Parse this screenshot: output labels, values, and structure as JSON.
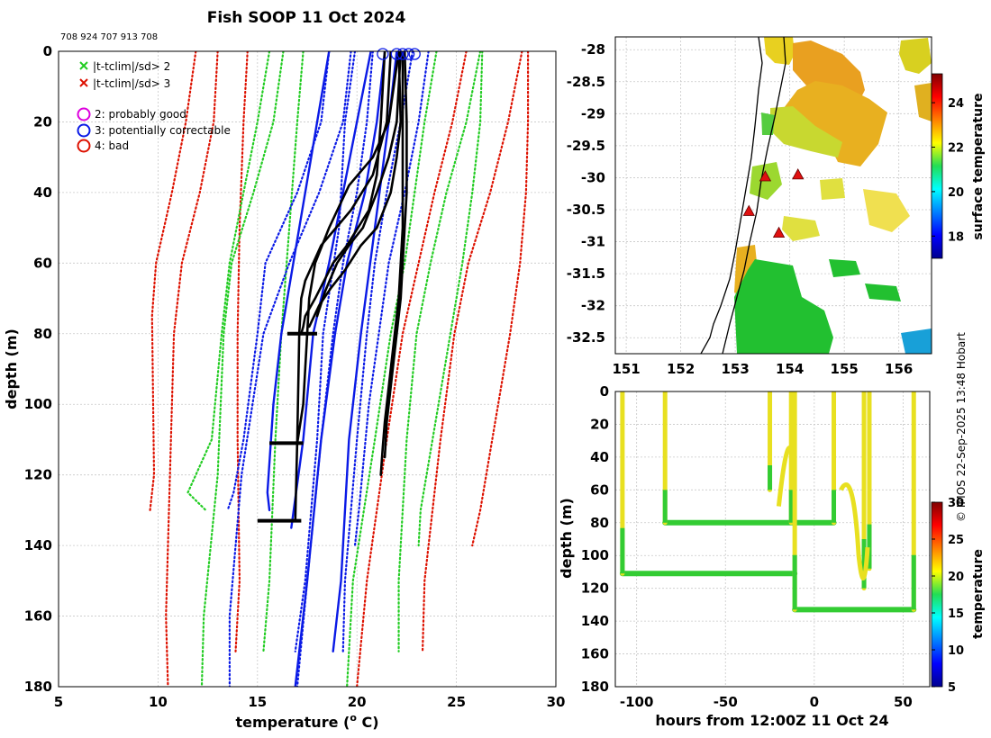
{
  "title": "Fish SOOP 11 Oct 2024",
  "platform_ids": "708 924 707 913 708",
  "credit": "© IMOS 22-Sep-2025 13:48 Hobart",
  "legend": {
    "flag2": "|t-tclim|/sd> 2",
    "flag3": "|t-tclim|/sd> 3",
    "q2": "2: probably good",
    "q3": "3: potentially correctable",
    "q4": "4: bad"
  },
  "colors": {
    "green": "#22cc22",
    "red": "#dd1100",
    "blue": "#0a1ae6",
    "magenta": "#dd00dd",
    "black": "#000000",
    "grid": "#c8c8c8"
  },
  "chart_data": [
    {
      "type": "line",
      "id": "profile",
      "xlabel": "temperature (",
      "xlabel_sup": "o",
      "xlabel_tail": " C)",
      "ylabel": "depth (m)",
      "xlim": [
        5,
        30
      ],
      "ylim": [
        0,
        180
      ],
      "xticks": [
        5,
        10,
        15,
        20,
        25,
        30
      ],
      "yticks": [
        0,
        20,
        40,
        60,
        80,
        100,
        120,
        140,
        160,
        180
      ],
      "grid": true,
      "series": [
        {
          "name": "clim-3sd-a",
          "color": "red",
          "style": "dotted",
          "x": [
            13.0,
            12.8,
            12.1,
            11.2,
            10.8,
            10.6,
            10.4,
            10.5
          ],
          "y": [
            0,
            20,
            40,
            60,
            80,
            120,
            160,
            180
          ]
        },
        {
          "name": "clim-3sd-b",
          "color": "red",
          "style": "dotted",
          "x": [
            11.9,
            11.4,
            10.7,
            9.9,
            9.7,
            9.8,
            9.6
          ],
          "y": [
            0,
            20,
            40,
            60,
            75,
            120,
            130
          ]
        },
        {
          "name": "clim-3sd-c",
          "color": "red",
          "style": "dotted",
          "x": [
            14.5,
            14.3,
            14.1,
            14.0,
            14.0,
            14.1,
            13.9
          ],
          "y": [
            0,
            20,
            50,
            80,
            110,
            150,
            170
          ]
        },
        {
          "name": "clim-3sd-d",
          "color": "red",
          "style": "dotted",
          "x": [
            25.5,
            24.8,
            23.9,
            23.1,
            22.3,
            21.5,
            20.5,
            20.0
          ],
          "y": [
            0,
            20,
            40,
            60,
            80,
            110,
            150,
            180
          ]
        },
        {
          "name": "clim-3sd-e",
          "color": "red",
          "style": "dotted",
          "x": [
            28.3,
            27.6,
            26.7,
            25.6,
            24.9,
            24.2,
            23.4,
            23.3
          ],
          "y": [
            0,
            20,
            40,
            60,
            80,
            110,
            150,
            170
          ]
        },
        {
          "name": "clim-3sd-f",
          "color": "red",
          "style": "dotted",
          "x": [
            28.6,
            28.6,
            28.5,
            28.2,
            27.7,
            27.1,
            26.2,
            25.8
          ],
          "y": [
            0,
            20,
            40,
            60,
            80,
            100,
            130,
            140
          ]
        },
        {
          "name": "clim-2sd-a",
          "color": "green",
          "style": "dotted",
          "x": [
            16.3,
            15.8,
            14.8,
            13.7,
            13.3,
            13.0,
            12.3,
            12.2
          ],
          "y": [
            0,
            20,
            40,
            60,
            80,
            120,
            160,
            180
          ]
        },
        {
          "name": "clim-2sd-b",
          "color": "green",
          "style": "dotted",
          "x": [
            15.6,
            15.0,
            14.3,
            13.6,
            13.2,
            12.7,
            11.5,
            12.4
          ],
          "y": [
            0,
            20,
            40,
            60,
            80,
            110,
            125,
            130
          ]
        },
        {
          "name": "clim-2sd-c",
          "color": "green",
          "style": "dotted",
          "x": [
            17.3,
            17.0,
            16.6,
            16.2,
            15.9,
            15.6,
            15.3
          ],
          "y": [
            0,
            20,
            50,
            80,
            110,
            150,
            170
          ]
        },
        {
          "name": "clim-2sd-d",
          "color": "green",
          "style": "dotted",
          "x": [
            24.0,
            23.4,
            22.9,
            22.4,
            21.7,
            20.9,
            19.8,
            19.5
          ],
          "y": [
            0,
            20,
            40,
            60,
            80,
            110,
            150,
            180
          ]
        },
        {
          "name": "clim-2sd-e",
          "color": "green",
          "style": "dotted",
          "x": [
            26.2,
            25.5,
            24.5,
            23.7,
            23.0,
            22.5,
            22.1,
            22.1
          ],
          "y": [
            0,
            20,
            40,
            60,
            80,
            110,
            150,
            170
          ]
        },
        {
          "name": "clim-2sd-f",
          "color": "green",
          "style": "dotted",
          "x": [
            26.3,
            26.2,
            25.8,
            25.3,
            24.7,
            24.1,
            23.2,
            23.1
          ],
          "y": [
            0,
            20,
            40,
            60,
            80,
            100,
            130,
            140
          ]
        },
        {
          "name": "clim-1sd-a",
          "color": "blue",
          "style": "dotted",
          "x": [
            19.7,
            19.3,
            18.1,
            16.6,
            15.3,
            14.2,
            13.6,
            13.6
          ],
          "y": [
            0,
            20,
            40,
            60,
            80,
            120,
            160,
            180
          ]
        },
        {
          "name": "clim-1sd-b",
          "color": "blue",
          "style": "dotted",
          "x": [
            18.6,
            18.2,
            17.0,
            15.4,
            15.0,
            14.3,
            13.8,
            13.5
          ],
          "y": [
            0,
            20,
            40,
            60,
            80,
            110,
            125,
            130
          ]
        },
        {
          "name": "clim-1sd-c",
          "color": "blue",
          "style": "dotted",
          "x": [
            19.9,
            19.4,
            19.1,
            18.3,
            18.0,
            17.4,
            16.9
          ],
          "y": [
            0,
            20,
            50,
            80,
            110,
            150,
            170
          ]
        },
        {
          "name": "clim-1sd-d",
          "color": "blue",
          "style": "dotted",
          "x": [
            20.8,
            20.5,
            20.0,
            19.3,
            18.8,
            18.2,
            17.5,
            17.0
          ],
          "y": [
            0,
            20,
            40,
            60,
            80,
            110,
            150,
            180
          ]
        },
        {
          "name": "clim-1sd-e",
          "color": "blue",
          "style": "dotted",
          "x": [
            22.8,
            22.2,
            21.5,
            20.9,
            20.5,
            20.0,
            19.4,
            19.3
          ],
          "y": [
            0,
            20,
            40,
            60,
            80,
            110,
            150,
            170
          ]
        },
        {
          "name": "clim-1sd-f",
          "color": "blue",
          "style": "dotted",
          "x": [
            23.6,
            23.1,
            22.4,
            21.6,
            21.1,
            20.6,
            20.1,
            19.9
          ],
          "y": [
            0,
            20,
            40,
            60,
            80,
            100,
            130,
            140
          ]
        },
        {
          "name": "clim-mean-a",
          "color": "blue",
          "style": "solid",
          "x": [
            21.4,
            21.0,
            20.4,
            19.5,
            18.9,
            18.2,
            17.5,
            16.9
          ],
          "y": [
            0,
            20,
            40,
            60,
            80,
            110,
            150,
            180
          ]
        },
        {
          "name": "clim-mean-b",
          "color": "blue",
          "style": "solid",
          "x": [
            22.0,
            21.6,
            20.9,
            20.2,
            19.6,
            19.2,
            18.8
          ],
          "y": [
            0,
            20,
            50,
            80,
            110,
            150,
            170
          ]
        },
        {
          "name": "clim-mean-c",
          "color": "blue",
          "style": "solid",
          "x": [
            20.7,
            20.0,
            19.3,
            18.6,
            17.8,
            17.3,
            16.7
          ],
          "y": [
            0,
            20,
            40,
            60,
            80,
            110,
            135
          ]
        },
        {
          "name": "clim-mean-d",
          "color": "blue",
          "style": "solid",
          "x": [
            18.6,
            18.0,
            17.4,
            16.8,
            16.2,
            15.8,
            15.5,
            15.6
          ],
          "y": [
            0,
            20,
            40,
            60,
            80,
            100,
            125,
            130
          ]
        },
        {
          "name": "obs-80m",
          "color": "black",
          "style": "solid",
          "x": [
            21.4,
            21.2,
            21.0,
            20.6,
            19.5,
            18.8,
            17.9,
            17.4,
            17.3,
            17.2
          ],
          "y": [
            0,
            20,
            35,
            45,
            55,
            60,
            70,
            75,
            78,
            80
          ]
        },
        {
          "name": "obs-111m",
          "color": "black",
          "style": "solid",
          "x": [
            22.1,
            21.6,
            20.8,
            19.6,
            18.6,
            17.9,
            17.6,
            17.5,
            17.3,
            17.0
          ],
          "y": [
            0,
            20,
            30,
            38,
            50,
            60,
            70,
            80,
            100,
            111
          ]
        },
        {
          "name": "obs-133m",
          "color": "black",
          "style": "solid",
          "x": [
            21.7,
            21.5,
            20.8,
            19.7,
            18.2,
            17.4,
            17.2,
            17.1,
            17.0,
            16.9
          ],
          "y": [
            0,
            20,
            35,
            45,
            55,
            65,
            70,
            80,
            110,
            133
          ]
        },
        {
          "name": "obs-surface-a",
          "color": "black",
          "style": "solid",
          "x": [
            22.1,
            22.2,
            22.0,
            21.7,
            21.0,
            20.2,
            19.4,
            18.7,
            18.1,
            17.6
          ],
          "y": [
            0,
            20,
            30,
            40,
            50,
            55,
            62,
            67,
            72,
            78
          ]
        },
        {
          "name": "obs-surface-b",
          "color": "black",
          "style": "solid",
          "x": [
            22.3,
            22.3,
            22.3,
            22.3,
            22.2,
            22.1,
            21.9,
            21.6,
            21.4,
            21.3,
            21.2
          ],
          "y": [
            0,
            20,
            40,
            50,
            60,
            70,
            80,
            95,
            105,
            112,
            120
          ]
        },
        {
          "name": "obs-surface-c",
          "color": "black",
          "style": "solid",
          "x": [
            22.4,
            22.5,
            22.5,
            22.4,
            22.3,
            22.2,
            22.0,
            21.7,
            21.5,
            21.4
          ],
          "y": [
            0,
            20,
            40,
            50,
            60,
            70,
            80,
            95,
            105,
            115
          ]
        },
        {
          "name": "obs-surface-d",
          "color": "black",
          "style": "solid",
          "x": [
            22.2,
            22.0,
            21.6,
            21.0,
            20.3,
            19.6,
            19.0,
            18.4,
            18.0
          ],
          "y": [
            0,
            20,
            30,
            40,
            50,
            55,
            60,
            68,
            75
          ]
        }
      ],
      "markers_x_green_red": {
        "note": "none"
      },
      "flagged_levels": [
        {
          "depth": 80,
          "x_from": 16.5,
          "x_to": 18.0
        },
        {
          "depth": 111,
          "x_from": 15.6,
          "x_to": 17.3
        },
        {
          "depth": 133,
          "x_from": 15.0,
          "x_to": 17.2
        }
      ],
      "surface_circles": [
        21.3,
        22.0,
        22.3,
        22.6,
        22.9
      ]
    },
    {
      "type": "heatmap",
      "id": "map",
      "xlim": [
        150.8,
        156.6
      ],
      "ylim": [
        -32.75,
        -27.8
      ],
      "xticks": [
        151,
        152,
        153,
        154,
        155,
        156
      ],
      "yticks": [
        -28,
        -28.5,
        -29,
        -29.5,
        -30,
        -30.5,
        -31,
        -31.5,
        -32,
        -32.5
      ],
      "ytick_labels": [
        "-28",
        "-28.5",
        "-29",
        "-29.5",
        "-30",
        "-30.5",
        "-31",
        "-31.5",
        "-32",
        "-32.5"
      ],
      "colorbar_label": "surface temperature",
      "colorbar_range": [
        17,
        25.3
      ],
      "colorbar_ticks": [
        18,
        20,
        22,
        24
      ],
      "stations": [
        [
          153.55,
          -29.98
        ],
        [
          154.15,
          -29.95
        ],
        [
          153.25,
          -30.52
        ],
        [
          153.8,
          -30.86
        ]
      ]
    },
    {
      "type": "scatter",
      "id": "depth-time",
      "xlabel": "hours from 12:00Z 11 Oct 24",
      "ylabel": "depth (m)",
      "xlim": [
        -112,
        65
      ],
      "ylim": [
        0,
        180
      ],
      "xticks": [
        -100,
        -50,
        0,
        50
      ],
      "yticks": [
        0,
        20,
        40,
        60,
        80,
        100,
        120,
        140,
        160,
        180
      ],
      "colorbar_label": "temperature",
      "colorbar_range": [
        5,
        30
      ],
      "colorbar_ticks": [
        5,
        10,
        15,
        20,
        25,
        30
      ],
      "verticals": [
        {
          "h": -108,
          "bottom": 111
        },
        {
          "h": -84,
          "bottom": 80
        },
        {
          "h": -25,
          "bottom": 60
        },
        {
          "h": -13,
          "bottom": 80
        },
        {
          "h": -11,
          "bottom": 133
        },
        {
          "h": 11,
          "bottom": 80
        },
        {
          "h": 28,
          "bottom": 120
        },
        {
          "h": 31,
          "bottom": 108
        },
        {
          "h": 56,
          "bottom": 133
        }
      ],
      "horizontals": [
        {
          "depth": 111,
          "from": -108,
          "to": -11
        },
        {
          "depth": 80,
          "from": -84,
          "to": 11
        },
        {
          "depth": 133,
          "from": -11,
          "to": 56
        }
      ]
    }
  ]
}
